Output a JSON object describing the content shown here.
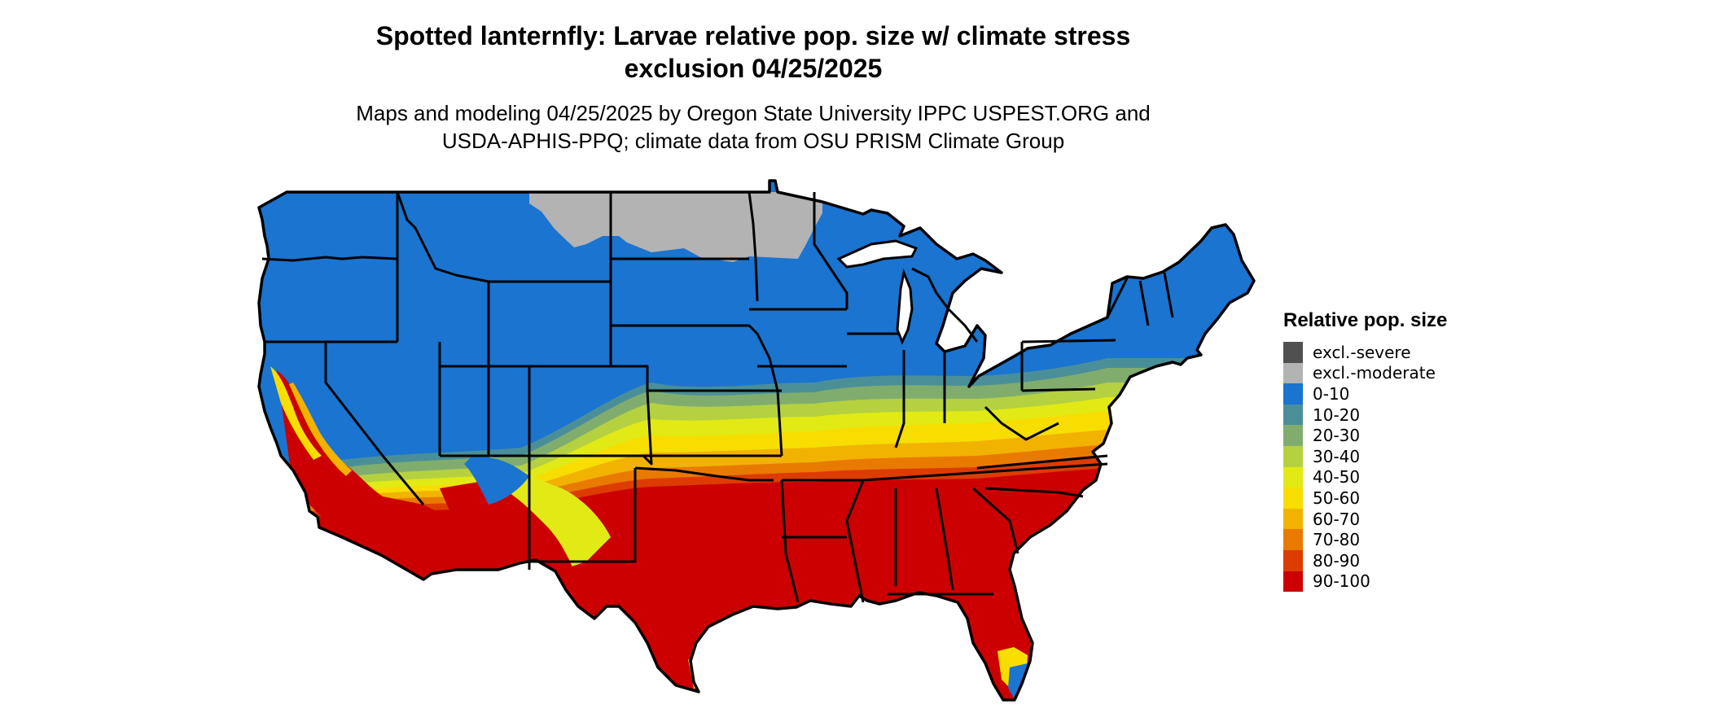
{
  "title": {
    "line1": "Spotted lanternfly: Larvae relative pop. size w/ climate stress",
    "line2": "exclusion 04/25/2025"
  },
  "subtitle": {
    "line1": "Maps and modeling 04/25/2025 by Oregon State University IPPC USPEST.ORG and",
    "line2": "USDA-APHIS-PPQ; climate data from OSU PRISM Climate Group"
  },
  "legend": {
    "title": "Relative pop. size",
    "items": [
      {
        "label": "excl.-severe",
        "color": "#505050"
      },
      {
        "label": "excl.-moderate",
        "color": "#b3b3b3"
      },
      {
        "label": "0-10",
        "color": "#1a74d0"
      },
      {
        "label": "10-20",
        "color": "#4a8f98"
      },
      {
        "label": "20-30",
        "color": "#80ad6e"
      },
      {
        "label": "30-40",
        "color": "#b5d140"
      },
      {
        "label": "40-50",
        "color": "#e1ea15"
      },
      {
        "label": "50-60",
        "color": "#f7de00"
      },
      {
        "label": "60-70",
        "color": "#f2b200"
      },
      {
        "label": "70-80",
        "color": "#e97a00"
      },
      {
        "label": "80-90",
        "color": "#dd3c00"
      },
      {
        "label": "90-100",
        "color": "#cc0000"
      }
    ]
  },
  "map": {
    "region": "Contiguous United States",
    "colors": {
      "excl_moderate": "#b3b3b3",
      "c0_10": "#1a74d0",
      "c10_20": "#4a8f98",
      "c20_30": "#80ad6e",
      "c30_40": "#b5d140",
      "c40_50": "#e1ea15",
      "c50_60": "#f7de00",
      "c60_70": "#f2b200",
      "c70_80": "#e97a00",
      "c80_90": "#dd3c00",
      "c90_100": "#cc0000",
      "boundary": "#000000"
    }
  }
}
